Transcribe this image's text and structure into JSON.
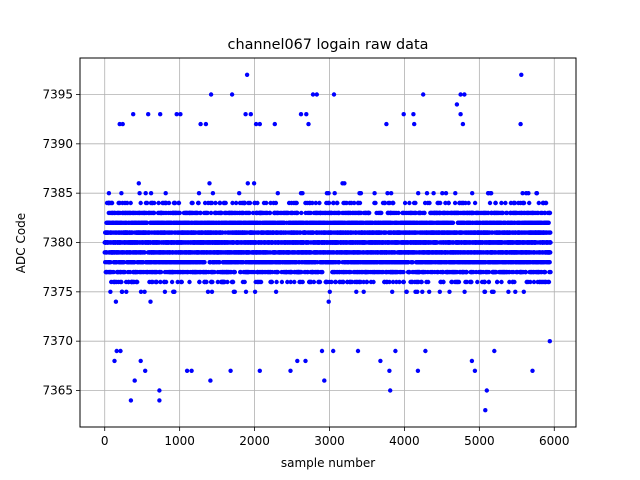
{
  "chart_data": {
    "type": "scatter",
    "title": "channel067 logain raw data",
    "xlabel": "sample number",
    "ylabel": "ADC Code",
    "xlim": [
      -330,
      6290
    ],
    "ylim": [
      7361.3,
      7398.7
    ],
    "xticks": [
      0,
      1000,
      2000,
      3000,
      4000,
      5000,
      6000
    ],
    "yticks": [
      7365,
      7370,
      7375,
      7380,
      7385,
      7390,
      7395
    ],
    "grid": true,
    "marker_color": "#0000ff",
    "series": [
      {
        "n_samples": 6000,
        "x_range": [
          0,
          5950
        ],
        "band_levels": [
          7373,
          7374,
          7375,
          7376,
          7377,
          7378,
          7379,
          7380,
          7381,
          7382,
          7383,
          7384,
          7385,
          7386,
          7387
        ],
        "outliers": [
          {
            "x": 350,
            "y": 7364
          },
          {
            "x": 400,
            "y": 7366
          },
          {
            "x": 730,
            "y": 7364
          },
          {
            "x": 730,
            "y": 7365
          },
          {
            "x": 1410,
            "y": 7366
          },
          {
            "x": 2930,
            "y": 7366
          },
          {
            "x": 3810,
            "y": 7365
          },
          {
            "x": 5080,
            "y": 7363
          },
          {
            "x": 5100,
            "y": 7365
          },
          {
            "x": 1420,
            "y": 7395
          },
          {
            "x": 1700,
            "y": 7395
          },
          {
            "x": 1900,
            "y": 7397
          },
          {
            "x": 2780,
            "y": 7395
          },
          {
            "x": 2830,
            "y": 7395
          },
          {
            "x": 3060,
            "y": 7395
          },
          {
            "x": 4250,
            "y": 7395
          },
          {
            "x": 4700,
            "y": 7394
          },
          {
            "x": 4750,
            "y": 7395
          },
          {
            "x": 4800,
            "y": 7395
          },
          {
            "x": 5560,
            "y": 7397
          },
          {
            "x": 380,
            "y": 7393
          },
          {
            "x": 580,
            "y": 7393
          },
          {
            "x": 740,
            "y": 7393
          },
          {
            "x": 960,
            "y": 7393
          },
          {
            "x": 1010,
            "y": 7393
          },
          {
            "x": 1880,
            "y": 7393
          },
          {
            "x": 1950,
            "y": 7393
          },
          {
            "x": 2620,
            "y": 7393
          },
          {
            "x": 2690,
            "y": 7393
          },
          {
            "x": 3990,
            "y": 7393
          },
          {
            "x": 4120,
            "y": 7393
          },
          {
            "x": 4750,
            "y": 7393
          },
          {
            "x": 200,
            "y": 7392
          },
          {
            "x": 240,
            "y": 7392
          },
          {
            "x": 1280,
            "y": 7392
          },
          {
            "x": 1350,
            "y": 7392
          },
          {
            "x": 2020,
            "y": 7392
          },
          {
            "x": 2070,
            "y": 7392
          },
          {
            "x": 2270,
            "y": 7392
          },
          {
            "x": 2720,
            "y": 7392
          },
          {
            "x": 3760,
            "y": 7392
          },
          {
            "x": 4130,
            "y": 7392
          },
          {
            "x": 4780,
            "y": 7392
          },
          {
            "x": 5550,
            "y": 7392
          },
          {
            "x": 130,
            "y": 7368
          },
          {
            "x": 160,
            "y": 7369
          },
          {
            "x": 210,
            "y": 7369
          },
          {
            "x": 480,
            "y": 7368
          },
          {
            "x": 540,
            "y": 7367
          },
          {
            "x": 1100,
            "y": 7367
          },
          {
            "x": 1160,
            "y": 7367
          },
          {
            "x": 1680,
            "y": 7367
          },
          {
            "x": 2070,
            "y": 7367
          },
          {
            "x": 2480,
            "y": 7367
          },
          {
            "x": 2570,
            "y": 7368
          },
          {
            "x": 2680,
            "y": 7368
          },
          {
            "x": 2900,
            "y": 7369
          },
          {
            "x": 3050,
            "y": 7369
          },
          {
            "x": 3380,
            "y": 7369
          },
          {
            "x": 3680,
            "y": 7368
          },
          {
            "x": 3800,
            "y": 7367
          },
          {
            "x": 3880,
            "y": 7369
          },
          {
            "x": 4180,
            "y": 7367
          },
          {
            "x": 4280,
            "y": 7369
          },
          {
            "x": 4900,
            "y": 7368
          },
          {
            "x": 4940,
            "y": 7367
          },
          {
            "x": 5200,
            "y": 7369
          },
          {
            "x": 5710,
            "y": 7367
          },
          {
            "x": 5940,
            "y": 7370
          }
        ]
      }
    ]
  }
}
